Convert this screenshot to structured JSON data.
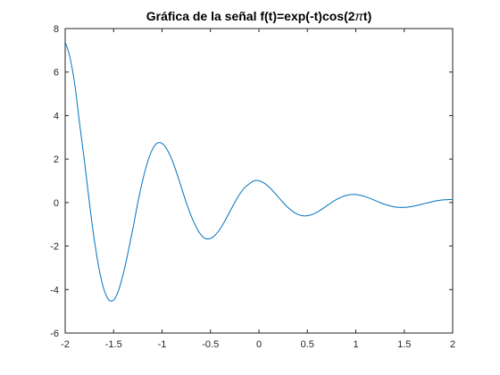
{
  "window": {
    "background": "#ffffff"
  },
  "chart_data": {
    "type": "line",
    "title_parts": [
      "Gráfica de la señal f(t)=exp(-t)cos(2",
      "π",
      "t)"
    ],
    "xlabel": "",
    "ylabel": "",
    "xlim": [
      -2,
      2
    ],
    "ylim": [
      -6,
      8
    ],
    "x_ticks": [
      -2,
      -1.5,
      -1,
      -0.5,
      0,
      0.5,
      1,
      1.5,
      2
    ],
    "x_tick_labels": [
      "-2",
      "-1.5",
      "-1",
      "-0.5",
      "0",
      "0.5",
      "1",
      "1.5",
      "2"
    ],
    "y_ticks": [
      -6,
      -4,
      -2,
      0,
      2,
      4,
      6,
      8
    ],
    "y_tick_labels": [
      "-6",
      "-4",
      "-2",
      "0",
      "2",
      "4",
      "6",
      "8"
    ],
    "grid": false,
    "series": [
      {
        "color": "#0072BD",
        "x": [
          -2.0,
          -1.95,
          -1.9,
          -1.85,
          -1.8,
          -1.75,
          -1.7,
          -1.65,
          -1.6,
          -1.55,
          -1.5,
          -1.45,
          -1.4,
          -1.35,
          -1.3,
          -1.25,
          -1.2,
          -1.15,
          -1.1,
          -1.05,
          -1.0,
          -0.95,
          -0.9,
          -0.85,
          -0.8,
          -0.75,
          -0.7,
          -0.65,
          -0.6,
          -0.55,
          -0.5,
          -0.45,
          -0.4,
          -0.35,
          -0.3,
          -0.25,
          -0.2,
          -0.15,
          -0.1,
          -0.05,
          0.0,
          0.05,
          0.1,
          0.15,
          0.2,
          0.25,
          0.3,
          0.35,
          0.4,
          0.45,
          0.5,
          0.55,
          0.6,
          0.65,
          0.7,
          0.75,
          0.8,
          0.85,
          0.9,
          0.95,
          1.0,
          1.05,
          1.1,
          1.15,
          1.2,
          1.25,
          1.3,
          1.35,
          1.4,
          1.45,
          1.5,
          1.55,
          1.6,
          1.65,
          1.7,
          1.75,
          1.8,
          1.85,
          1.9,
          1.95,
          2.0
        ],
        "y": [
          7.389,
          6.663,
          5.404,
          3.589,
          1.873,
          0.0,
          -1.692,
          -3.046,
          -3.992,
          -4.47,
          -4.482,
          -4.051,
          -3.27,
          -2.271,
          -1.18,
          0.0,
          1.027,
          1.853,
          2.439,
          2.731,
          2.718,
          2.453,
          1.986,
          1.376,
          0.688,
          0.0,
          -0.611,
          -1.101,
          -1.475,
          -1.658,
          -1.649,
          -1.488,
          -1.207,
          -0.833,
          -0.416,
          0.0,
          0.378,
          0.675,
          0.856,
          0.999,
          1.0,
          0.905,
          0.732,
          0.506,
          0.253,
          0.0,
          -0.229,
          -0.409,
          -0.541,
          -0.606,
          -0.607,
          -0.548,
          -0.444,
          -0.307,
          -0.153,
          0.0,
          0.139,
          0.248,
          0.329,
          0.368,
          0.368,
          0.332,
          0.268,
          0.186,
          0.093,
          0.0,
          -0.084,
          -0.15,
          -0.199,
          -0.223,
          -0.223,
          -0.201,
          -0.163,
          -0.113,
          -0.056,
          0.0,
          0.051,
          0.091,
          0.121,
          0.135,
          0.135
        ]
      }
    ]
  }
}
